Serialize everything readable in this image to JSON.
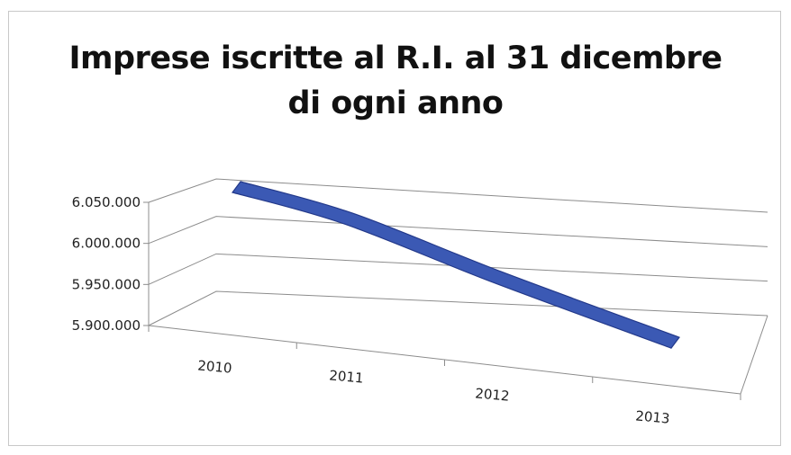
{
  "chart_data": {
    "type": "area",
    "title_lines": [
      "Imprese iscritte al R.I. al 31 dicembre",
      "di ogni anno"
    ],
    "categories": [
      "2010",
      "2011",
      "2012",
      "2013"
    ],
    "values": [
      6020000,
      6010000,
      5975000,
      5935000
    ],
    "y_ticks": [
      "6.050.000",
      "6.000.000",
      "5.950.000",
      "5.900.000"
    ],
    "ylim": [
      5900000,
      6050000
    ],
    "xlabel": "",
    "ylabel": "",
    "grid": true,
    "legend": "none",
    "series_color": "#3b59b4",
    "series_edge_color": "#23398a"
  }
}
